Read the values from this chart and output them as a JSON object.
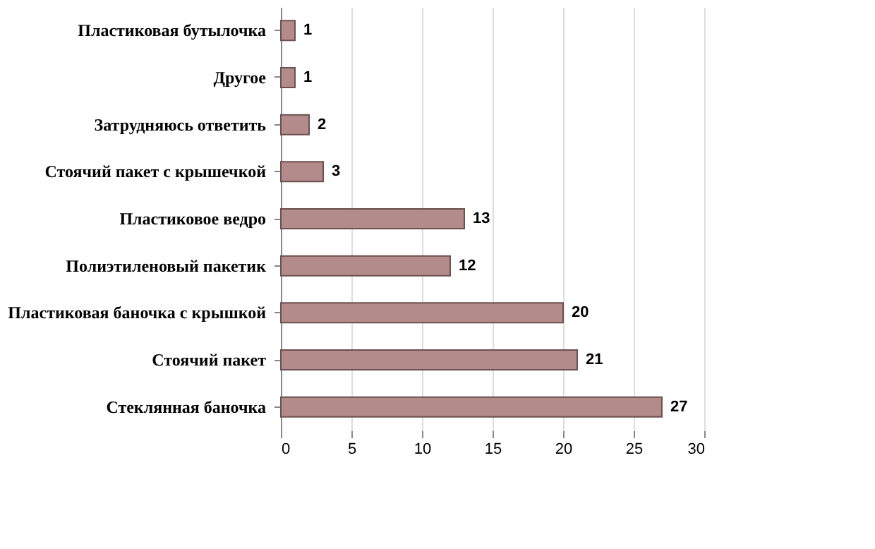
{
  "chart_data": {
    "type": "bar",
    "orientation": "horizontal",
    "categories": [
      "Пластиковая бутылочка",
      "Другое",
      "Затрудняюсь ответить",
      "Стоячий пакет с крышечкой",
      "Пластиковое ведро",
      "Полиэтиленовый пакетик",
      "Пластиковая баночка с крышкой",
      "Стоячий пакет",
      "Стеклянная баночка"
    ],
    "values": [
      1,
      1,
      2,
      3,
      13,
      12,
      20,
      21,
      27
    ],
    "color": "#b38b8b",
    "xlim": [
      0,
      30
    ],
    "xticks": [
      0,
      5,
      10,
      15,
      20,
      25,
      30
    ],
    "grid": "x",
    "data_labels": true
  }
}
